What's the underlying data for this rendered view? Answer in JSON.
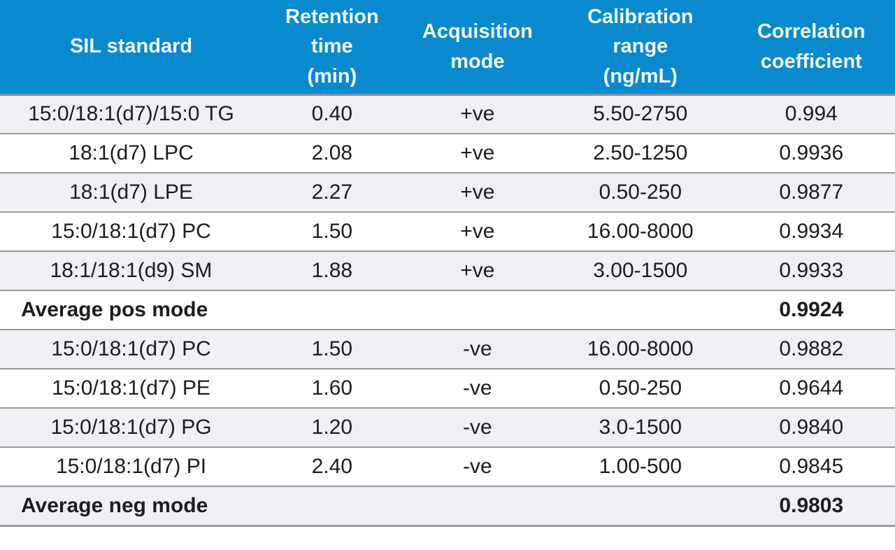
{
  "chart_data": {
    "type": "table",
    "columns": [
      "SIL standard",
      "Retention\ntime\n(min)",
      "Acquisition\nmode",
      "Calibration\nrange\n(ng/mL)",
      "Correlation\ncoefficient"
    ],
    "column_keys": [
      "sil-standard",
      "retention-time",
      "acquisition-mode",
      "calibration-range",
      "correlation-coefficient"
    ],
    "rows": [
      {
        "type": "data",
        "cells": [
          "15:0/18:1(d7)/15:0 TG",
          "0.40",
          "+ve",
          "5.50-2750",
          "0.994"
        ]
      },
      {
        "type": "data",
        "cells": [
          "18:1(d7) LPC",
          "2.08",
          "+ve",
          "2.50-1250",
          "0.9936"
        ]
      },
      {
        "type": "data",
        "cells": [
          "18:1(d7) LPE",
          "2.27",
          "+ve",
          "0.50-250",
          "0.9877"
        ]
      },
      {
        "type": "data",
        "cells": [
          "15:0/18:1(d7) PC",
          "1.50",
          "+ve",
          "16.00-8000",
          "0.9934"
        ]
      },
      {
        "type": "data",
        "cells": [
          "18:1/18:1(d9) SM",
          "1.88",
          "+ve",
          "3.00-1500",
          "0.9933"
        ]
      },
      {
        "type": "summary",
        "cells": [
          "Average pos mode",
          "",
          "",
          "",
          "0.9924"
        ]
      },
      {
        "type": "data",
        "cells": [
          "15:0/18:1(d7) PC",
          "1.50",
          "-ve",
          "16.00-8000",
          "0.9882"
        ]
      },
      {
        "type": "data",
        "cells": [
          "15:0/18:1(d7) PE",
          "1.60",
          "-ve",
          "0.50-250",
          "0.9644"
        ]
      },
      {
        "type": "data",
        "cells": [
          "15:0/18:1(d7) PG",
          "1.20",
          "-ve",
          "3.0-1500",
          "0.9840"
        ]
      },
      {
        "type": "data",
        "cells": [
          "15:0/18:1(d7) PI",
          "2.40",
          "-ve",
          "1.00-500",
          "0.9845"
        ]
      },
      {
        "type": "summary",
        "cells": [
          "Average neg mode",
          "",
          "",
          "",
          "0.9803"
        ]
      }
    ]
  },
  "colors": {
    "header_bg": "#0a8ace",
    "header_text": "#f2fbff",
    "header_divider": "#7e96a4",
    "row_shade": "#eef0f3",
    "row_white": "#ffffff",
    "divider": "#9b9b9f",
    "text": "#1d1d1f"
  }
}
